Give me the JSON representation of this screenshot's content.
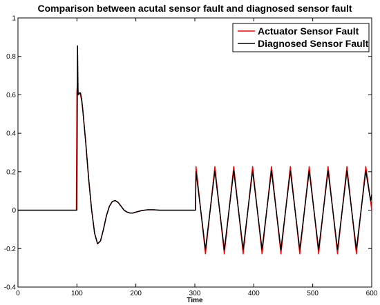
{
  "chart_data": {
    "type": "line",
    "title": "Comparison between acutal sensor fault and diagnosed sensor fault",
    "xlabel": "Time",
    "ylabel": "",
    "xlim": [
      0,
      600
    ],
    "ylim": [
      -0.4,
      1
    ],
    "xticks": [
      0,
      100,
      200,
      300,
      400,
      500,
      600
    ],
    "yticks": [
      -0.4,
      -0.2,
      0,
      0.2,
      0.4,
      0.6,
      0.8,
      1
    ],
    "xtick_labels": [
      "0",
      "100",
      "200",
      "300",
      "400",
      "500",
      "600"
    ],
    "ytick_labels": [
      "-0.4",
      "-0.2",
      "0",
      "0.2",
      "0.4",
      "0.6",
      "0.8",
      "1"
    ],
    "grid": false,
    "legend_position": "top-right",
    "series": [
      {
        "name": "Actuator Sensor Fault",
        "color": "#ff0000",
        "x": [
          0,
          99,
          100,
          101,
          102,
          104,
          106,
          108,
          110,
          115,
          120,
          125,
          130,
          135,
          140,
          145,
          150,
          155,
          160,
          165,
          170,
          175,
          180,
          185,
          190,
          195,
          200,
          210,
          220,
          230,
          240,
          250,
          260,
          270,
          280,
          290,
          300,
          301,
          302,
          310,
          318,
          326,
          334,
          342,
          350,
          358,
          366,
          374,
          382,
          390,
          398,
          406,
          414,
          422,
          430,
          438,
          446,
          454,
          462,
          470,
          478,
          486,
          494,
          502,
          510,
          518,
          526,
          534,
          542,
          550,
          558,
          566,
          574,
          582,
          590,
          598,
          600
        ],
        "y": [
          0,
          0,
          0.62,
          0.66,
          0.6,
          0.61,
          0.6,
          0.57,
          0.52,
          0.35,
          0.16,
          0.0,
          -0.12,
          -0.175,
          -0.16,
          -0.1,
          -0.03,
          0.02,
          0.045,
          0.05,
          0.04,
          0.02,
          0.0,
          -0.01,
          -0.015,
          -0.015,
          -0.01,
          -0.002,
          0.002,
          0.002,
          0.0,
          0.0,
          0.0,
          0.0,
          0.0,
          0.0,
          0.0,
          0.0,
          0.227,
          0.0,
          -0.227,
          0.0,
          0.227,
          0.0,
          -0.227,
          0.0,
          0.227,
          0.0,
          -0.227,
          0.0,
          0.227,
          0.0,
          -0.227,
          0.0,
          0.227,
          0.0,
          -0.227,
          0.0,
          0.227,
          0.0,
          -0.227,
          0.0,
          0.227,
          0.0,
          -0.227,
          0.0,
          0.227,
          0.0,
          -0.227,
          0.0,
          0.227,
          0.0,
          -0.227,
          0.0,
          0.227,
          0.05,
          0.0
        ]
      },
      {
        "name": "Diagnosed Sensor Fault",
        "color": "#000000",
        "x": [
          0,
          99,
          100,
          101,
          102,
          104,
          106,
          108,
          110,
          115,
          120,
          125,
          130,
          135,
          140,
          145,
          150,
          155,
          160,
          165,
          170,
          175,
          180,
          185,
          190,
          195,
          200,
          210,
          220,
          230,
          240,
          250,
          260,
          270,
          280,
          290,
          300,
          301,
          302,
          310,
          318,
          326,
          334,
          342,
          350,
          358,
          366,
          374,
          382,
          390,
          398,
          406,
          414,
          422,
          430,
          438,
          446,
          454,
          462,
          470,
          478,
          486,
          494,
          502,
          510,
          518,
          526,
          534,
          542,
          550,
          558,
          566,
          574,
          582,
          590,
          598,
          600
        ],
        "y": [
          0,
          0,
          0.0,
          0.855,
          0.6,
          0.61,
          0.61,
          0.58,
          0.52,
          0.35,
          0.16,
          0.0,
          -0.12,
          -0.175,
          -0.16,
          -0.1,
          -0.03,
          0.02,
          0.045,
          0.05,
          0.04,
          0.02,
          0.0,
          -0.01,
          -0.015,
          -0.015,
          -0.01,
          -0.002,
          0.002,
          0.002,
          0.0,
          0.0,
          0.0,
          0.0,
          0.0,
          0.0,
          0.0,
          0.0,
          0.2,
          0.0,
          -0.205,
          0.0,
          0.205,
          0.0,
          -0.205,
          0.0,
          0.205,
          0.0,
          -0.205,
          0.0,
          0.205,
          0.0,
          -0.205,
          0.0,
          0.205,
          0.0,
          -0.205,
          0.0,
          0.205,
          0.0,
          -0.205,
          0.0,
          0.205,
          0.0,
          -0.205,
          0.0,
          0.205,
          0.0,
          -0.205,
          0.0,
          0.205,
          0.0,
          -0.205,
          0.0,
          0.205,
          0.05,
          0.08
        ]
      }
    ]
  }
}
